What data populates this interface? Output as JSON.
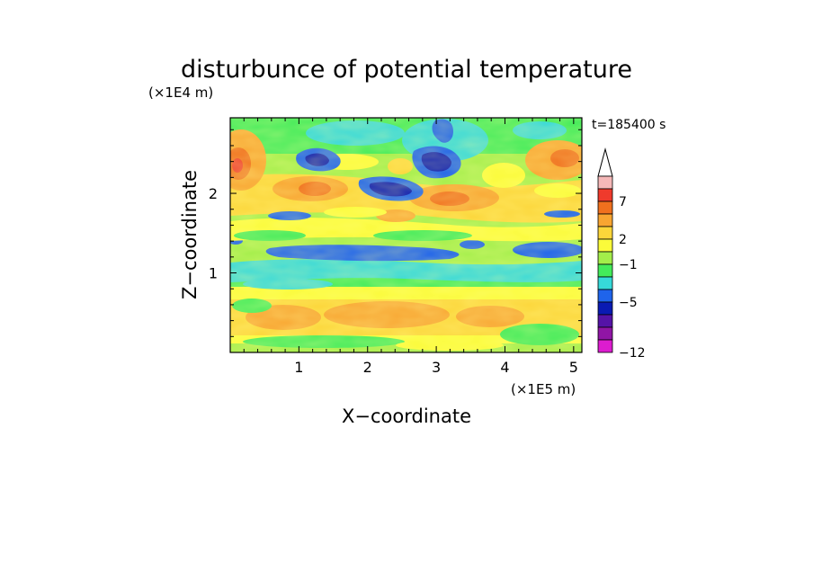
{
  "chart_data": {
    "type": "heatmap",
    "title": "disturbunce of potential temperature",
    "xlabel": "X−coordinate",
    "ylabel": "Z−coordinate",
    "x_unit": "(×1E5 m)",
    "y_unit": "(×1E4 m)",
    "time_label": "t=185400 s",
    "xlim": [
      0,
      5.12
    ],
    "ylim": [
      0,
      2.95
    ],
    "x_ticks": [
      "1",
      "2",
      "3",
      "4",
      "5"
    ],
    "y_ticks": [
      "1",
      "2"
    ],
    "x_tick_values": [
      1,
      2,
      3,
      4,
      5
    ],
    "y_tick_values": [
      1,
      2
    ],
    "colorbar": {
      "labels": [
        "7",
        "2",
        "−1",
        "−5",
        "−12"
      ],
      "levels": [
        7,
        2,
        -1,
        -5,
        -12
      ],
      "colors": [
        "#f5b8b8",
        "#ef3a2c",
        "#f0701e",
        "#f8a531",
        "#fcd63a",
        "#fbfb3a",
        "#a3ee4a",
        "#43eb5a",
        "#36d9d9",
        "#1f64eb",
        "#0a1ab3",
        "#5513a7",
        "#9015a5",
        "#dc1ccf"
      ]
    },
    "rows": [
      {
        "z": 2.8,
        "text": "orange-red maxima near x=0.1 and x=4.9, green/cyan between"
      },
      {
        "z": 2.5,
        "text": "blue minima near x=1.0 and x=2.0-3.0"
      },
      {
        "z": 2.1,
        "text": "orange maxima near x=1.1 and x=3.2"
      },
      {
        "z": 1.8,
        "text": "yellow/green with blue streak near x=0.8"
      },
      {
        "z": 1.3,
        "text": "blue minimum band x=0.6-3.5 and x=4.3-5.1"
      },
      {
        "z": 1.0,
        "text": "cyan/green band across the domain"
      },
      {
        "z": 0.7,
        "text": "yellow band"
      },
      {
        "z": 0.3,
        "text": "orange maxima near x=0.8 and x=2.5"
      }
    ]
  }
}
